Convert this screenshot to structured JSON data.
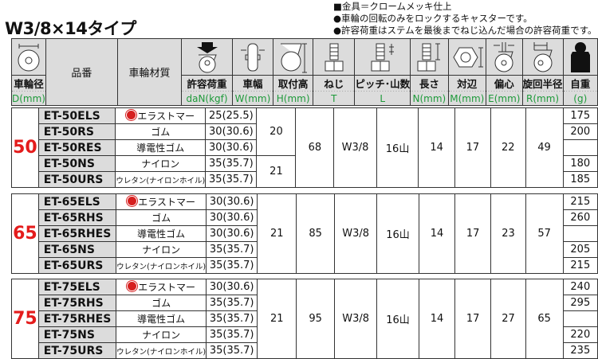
{
  "title": "W3/8×14タイプ",
  "notes": [
    "■金具＝クロームメッキ仕上",
    "●車輪の回転のみをロックするキャスターです。",
    "●許容荷重はステムを最後までねじ込んだ場合の許容荷重です。"
  ],
  "header": {
    "columns": [
      {
        "icon": "wheel-diameter-icon",
        "label": "車輪径",
        "unit": "D(mm)"
      },
      {
        "label": "品番"
      },
      {
        "label": "車輪材質"
      },
      {
        "icon": "load-arrow-caster-icon",
        "label": "許容荷重",
        "unit": "daN(kgf)"
      },
      {
        "icon": "wheel-width-icon",
        "label": "車幅",
        "unit": "W(mm)"
      },
      {
        "icon": "mounting-height-icon",
        "label": "取付高",
        "unit": "H(mm)"
      },
      {
        "icon": "bolt-icon",
        "label": "ねじ",
        "unit": "T"
      },
      {
        "icon": "thread-pitch-icon",
        "label": "ピッチ･山数",
        "unit": "L"
      },
      {
        "icon": "bolt-length-icon",
        "label": "長さ",
        "unit": "N(mm)"
      },
      {
        "icon": "hex-nut-icon",
        "label": "対辺",
        "unit": "M(mm)"
      },
      {
        "icon": "offset-icon",
        "label": "偏心",
        "unit": "E(mm)"
      },
      {
        "icon": "swivel-radius-icon",
        "label": "旋回半径",
        "unit": "R(mm)"
      },
      {
        "icon": "weight-icon",
        "label": "自重",
        "unit": "(g)"
      }
    ]
  },
  "accent_color": "#e41c1c",
  "unit_color": "#1e9a3a",
  "groups": [
    {
      "diameter": "50",
      "height": "68",
      "thread": "W3/8",
      "pitch": "16山",
      "length": "14",
      "across": "17",
      "offset": "22",
      "radius": "49",
      "rows": [
        {
          "part": "ET-50ELS",
          "material": "エラストマー",
          "badge": true,
          "load": "25(25.5)",
          "width": "20",
          "weight": "175"
        },
        {
          "part": "ET-50RS",
          "material": "ゴム",
          "load": "30(30.6)",
          "weight": "200"
        },
        {
          "part": "ET-50RES",
          "material": "導電性ゴム",
          "load": "30(30.6)",
          "weight": ""
        },
        {
          "part": "ET-50NS",
          "material": "ナイロン",
          "load": "35(35.7)",
          "width": "21",
          "weight": "180"
        },
        {
          "part": "ET-50URS",
          "material": "ウレタン(ナイロンホイル)",
          "small": true,
          "load": "35(35.7)",
          "weight": "185"
        }
      ]
    },
    {
      "diameter": "65",
      "height": "85",
      "thread": "W3/8",
      "pitch": "16山",
      "length": "14",
      "across": "17",
      "offset": "23",
      "radius": "57",
      "rows": [
        {
          "part": "ET-65ELS",
          "material": "エラストマー",
          "badge": true,
          "load": "30(30.6)",
          "width": "21",
          "weight": "215"
        },
        {
          "part": "ET-65RHS",
          "material": "ゴム",
          "load": "30(30.6)",
          "weight": "260"
        },
        {
          "part": "ET-65RHES",
          "material": "導電性ゴム",
          "load": "30(30.6)",
          "weight": ""
        },
        {
          "part": "ET-65NS",
          "material": "ナイロン",
          "load": "35(35.7)",
          "weight": "205"
        },
        {
          "part": "ET-65URS",
          "material": "ウレタン(ナイロンホイル)",
          "small": true,
          "load": "35(35.7)",
          "weight": "215"
        }
      ]
    },
    {
      "diameter": "75",
      "height": "95",
      "thread": "W3/8",
      "pitch": "16山",
      "length": "14",
      "across": "17",
      "offset": "27",
      "radius": "65",
      "rows": [
        {
          "part": "ET-75ELS",
          "material": "エラストマー",
          "badge": true,
          "load": "30(30.6)",
          "width": "21",
          "weight": "240"
        },
        {
          "part": "ET-75RHS",
          "material": "ゴム",
          "load": "35(35.7)",
          "weight": "295"
        },
        {
          "part": "ET-75RHES",
          "material": "導電性ゴム",
          "load": "35(35.7)",
          "weight": ""
        },
        {
          "part": "ET-75NS",
          "material": "ナイロン",
          "load": "35(35.7)",
          "weight": "220"
        },
        {
          "part": "ET-75URS",
          "material": "ウレタン(ナイロンホイル)",
          "small": true,
          "load": "35(35.7)",
          "weight": "235"
        }
      ]
    }
  ]
}
